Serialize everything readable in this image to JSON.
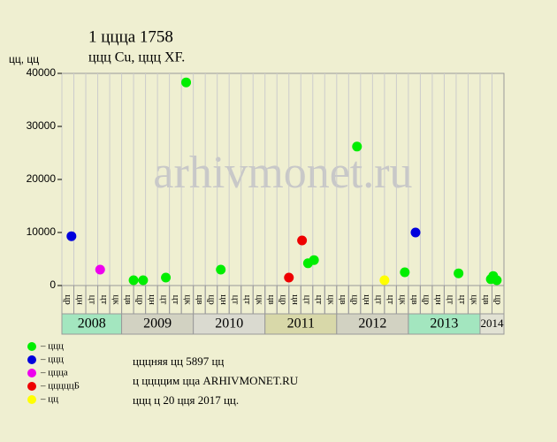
{
  "title": "1 цццa 1758",
  "subtitle": "ццц Cu, ццц XF.",
  "watermark": "arhivmonet.ru",
  "notes": [
    "цццняя цц 5897 цц",
    "ц ццццим цца ARHIVMONET.RU",
    "ццц ц 20 цця 2017 цц."
  ],
  "chart_data": {
    "type": "scatter",
    "y_label": "цц, цц",
    "xlim": [
      0,
      37
    ],
    "ylim": [
      0,
      40000
    ],
    "yticks": [
      0,
      10000,
      20000,
      30000,
      40000
    ],
    "years": [
      {
        "label": "2008",
        "color": "#a3e6bf",
        "columns": [
          "цр",
          "цн",
          "цт",
          "цт",
          "цк"
        ]
      },
      {
        "label": "2009",
        "color": "#d2d2c2",
        "columns": [
          "цв",
          "цр",
          "цн",
          "цт",
          "цт",
          "цк"
        ]
      },
      {
        "label": "2010",
        "color": "#dadad0",
        "columns": [
          "цв",
          "цр",
          "цн",
          "цт",
          "цт",
          "цк"
        ]
      },
      {
        "label": "2011",
        "color": "#d8d8a9",
        "columns": [
          "цв",
          "цр",
          "цн",
          "цт",
          "цт",
          "цк"
        ]
      },
      {
        "label": "2012",
        "color": "#d2d2c2",
        "columns": [
          "цв",
          "цр",
          "цн",
          "цт",
          "цт",
          "цк"
        ]
      },
      {
        "label": "2013",
        "color": "#a3e6bf",
        "columns": [
          "цв",
          "цр",
          "цн",
          "цт",
          "цт",
          "цк"
        ]
      },
      {
        "label": "2014",
        "color": "#e2e2d4",
        "columns": [
          "цв",
          "цр"
        ]
      }
    ],
    "series": [
      {
        "name": "– ццц",
        "color": "#00ee00",
        "x": [
          6.0,
          6.8,
          8.7,
          10.4,
          13.3,
          20.6,
          21.1,
          24.7,
          28.7,
          33.2,
          35.9,
          36.1,
          36.4
        ],
        "values": [
          1000,
          1000,
          1500,
          38300,
          3000,
          4200,
          4800,
          26200,
          2500,
          2300,
          1200,
          1800,
          1000
        ]
      },
      {
        "name": "– ццц",
        "color": "#0000dd",
        "x": [
          0.8,
          29.6
        ],
        "values": [
          9300,
          10000
        ]
      },
      {
        "name": "– ццца",
        "color": "#ee00ee",
        "x": [
          3.2
        ],
        "values": [
          3000
        ]
      },
      {
        "name": "– цццццБ",
        "color": "#ee0000",
        "x": [
          19.0,
          20.1
        ],
        "values": [
          1500,
          8500
        ]
      },
      {
        "name": "– цц",
        "color": "#ffff00",
        "x": [
          27.0
        ],
        "values": [
          1000
        ]
      }
    ]
  }
}
